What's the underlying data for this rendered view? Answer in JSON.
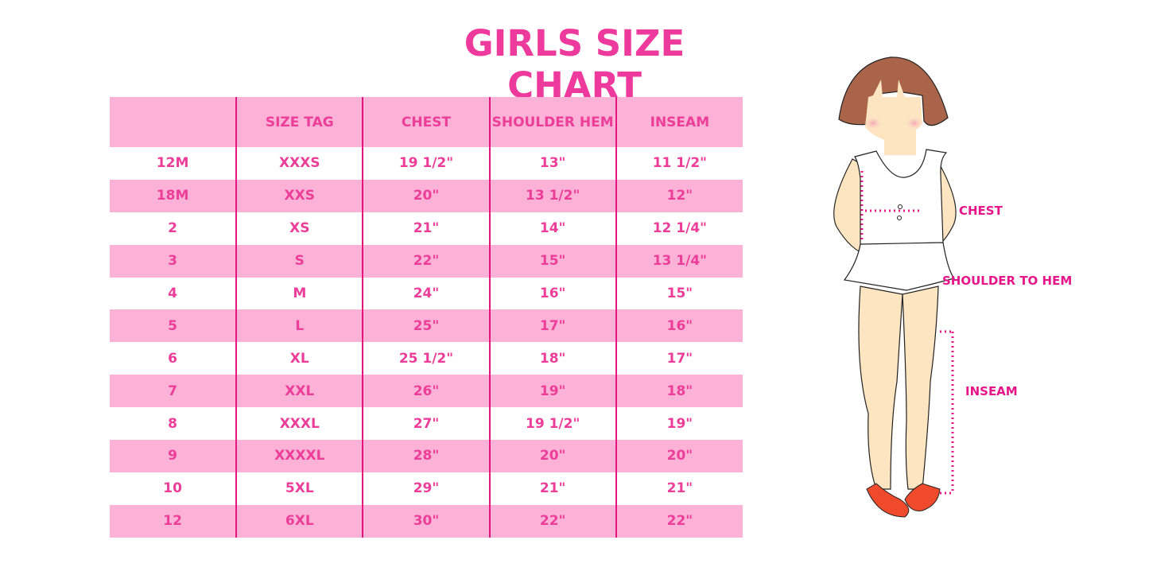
{
  "title": "GIRLS SIZE CHART",
  "table": {
    "headers": [
      "",
      "SIZE TAG",
      "CHEST",
      "SHOULDER HEM",
      "INSEAM"
    ],
    "rows": [
      [
        "12M",
        "XXXS",
        "19 1/2\"",
        "13\"",
        "11 1/2\""
      ],
      [
        "18M",
        "XXS",
        "20\"",
        "13 1/2\"",
        "12\""
      ],
      [
        "2",
        "XS",
        "21\"",
        "14\"",
        "12 1/4\""
      ],
      [
        "3",
        "S",
        "22\"",
        "15\"",
        "13 1/4\""
      ],
      [
        "4",
        "M",
        "24\"",
        "16\"",
        "15\""
      ],
      [
        "5",
        "L",
        "25\"",
        "17\"",
        "16\""
      ],
      [
        "6",
        "XL",
        "25 1/2\"",
        "18\"",
        "17\""
      ],
      [
        "7",
        "XXL",
        "26\"",
        "19\"",
        "18\""
      ],
      [
        "8",
        "XXXL",
        "27\"",
        "19 1/2\"",
        "19\""
      ],
      [
        "9",
        "XXXXL",
        "28\"",
        "20\"",
        "20\""
      ],
      [
        "10",
        "5XL",
        "29\"",
        "21\"",
        "21\""
      ],
      [
        "12",
        "6XL",
        "30\"",
        "22\"",
        "22\""
      ]
    ]
  },
  "figure": {
    "labels": {
      "chest": "CHEST",
      "shoulder_to_hem": "SHOULDER TO HEM",
      "inseam": "INSEAM"
    }
  },
  "colors": {
    "accent": "#ec3d98",
    "row_fill": "#fcb1d6",
    "divider": "#e4157f"
  }
}
